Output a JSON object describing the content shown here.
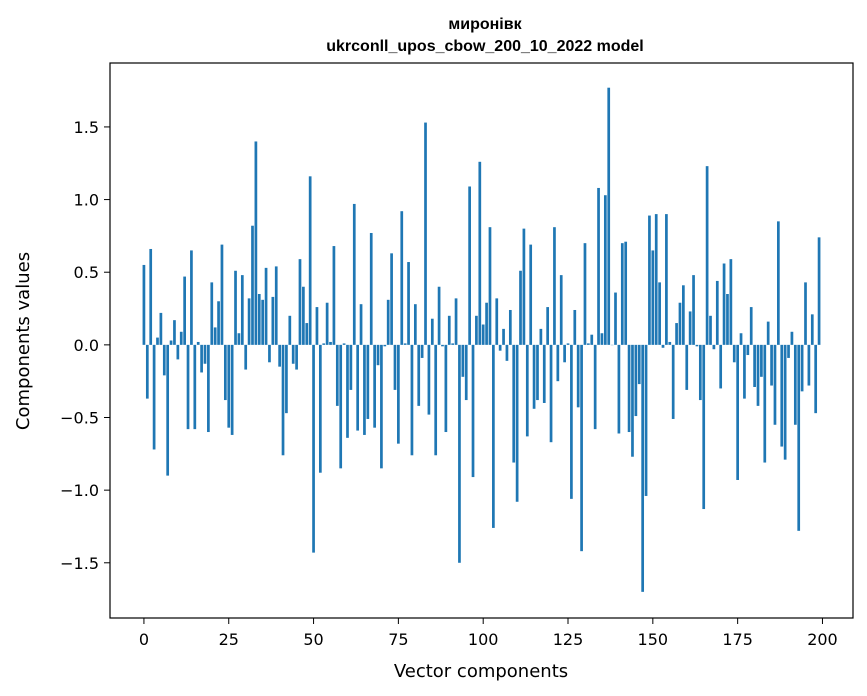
{
  "chart_data": {
    "type": "bar",
    "title_line1": "миронівк",
    "title_line2": "ukrconll_upos_cbow_200_10_2022 model",
    "xlabel": "Vector components",
    "ylabel": "Components values",
    "xlim": [
      -10,
      209
    ],
    "ylim": [
      -1.88,
      1.94
    ],
    "x_ticks": [
      0,
      25,
      50,
      75,
      100,
      125,
      150,
      175,
      200
    ],
    "y_ticks": [
      -1.5,
      -1.0,
      -0.5,
      0.0,
      0.5,
      1.0,
      1.5
    ],
    "y_tick_labels": [
      "−1.5",
      "−1.0",
      "−0.5",
      "0.0",
      "0.5",
      "1.0",
      "1.5"
    ],
    "bar_color": "#1f77b4",
    "x": [
      0,
      1,
      2,
      3,
      4,
      5,
      6,
      7,
      8,
      9,
      10,
      11,
      12,
      13,
      14,
      15,
      16,
      17,
      18,
      19,
      20,
      21,
      22,
      23,
      24,
      25,
      26,
      27,
      28,
      29,
      30,
      31,
      32,
      33,
      34,
      35,
      36,
      37,
      38,
      39,
      40,
      41,
      42,
      43,
      44,
      45,
      46,
      47,
      48,
      49,
      50,
      51,
      52,
      53,
      54,
      55,
      56,
      57,
      58,
      59,
      60,
      61,
      62,
      63,
      64,
      65,
      66,
      67,
      68,
      69,
      70,
      71,
      72,
      73,
      74,
      75,
      76,
      77,
      78,
      79,
      80,
      81,
      82,
      83,
      84,
      85,
      86,
      87,
      88,
      89,
      90,
      91,
      92,
      93,
      94,
      95,
      96,
      97,
      98,
      99,
      100,
      101,
      102,
      103,
      104,
      105,
      106,
      107,
      108,
      109,
      110,
      111,
      112,
      113,
      114,
      115,
      116,
      117,
      118,
      119,
      120,
      121,
      122,
      123,
      124,
      125,
      126,
      127,
      128,
      129,
      130,
      131,
      132,
      133,
      134,
      135,
      136,
      137,
      138,
      139,
      140,
      141,
      142,
      143,
      144,
      145,
      146,
      147,
      148,
      149,
      150,
      151,
      152,
      153,
      154,
      155,
      156,
      157,
      158,
      159,
      160,
      161,
      162,
      163,
      164,
      165,
      166,
      167,
      168,
      169,
      170,
      171,
      172,
      173,
      174,
      175,
      176,
      177,
      178,
      179,
      180,
      181,
      182,
      183,
      184,
      185,
      186,
      187,
      188,
      189,
      190,
      191,
      192,
      193,
      194,
      195,
      196,
      197,
      198,
      199
    ],
    "values": [
      0.55,
      -0.37,
      0.66,
      -0.72,
      0.05,
      0.22,
      -0.21,
      -0.9,
      0.03,
      0.17,
      -0.1,
      0.09,
      0.47,
      -0.58,
      0.65,
      -0.58,
      0.02,
      -0.19,
      -0.13,
      -0.6,
      0.43,
      0.12,
      0.3,
      0.69,
      -0.38,
      -0.57,
      -0.62,
      0.51,
      0.08,
      0.48,
      -0.17,
      0.32,
      0.82,
      1.4,
      0.35,
      0.31,
      0.53,
      -0.12,
      0.33,
      0.54,
      -0.15,
      -0.76,
      -0.47,
      0.2,
      -0.13,
      -0.17,
      0.59,
      0.4,
      0.15,
      1.16,
      -1.43,
      0.26,
      -0.88,
      0.01,
      0.29,
      0.02,
      0.68,
      -0.42,
      -0.85,
      0.01,
      -0.64,
      -0.31,
      0.97,
      -0.59,
      0.28,
      -0.62,
      -0.51,
      0.77,
      -0.57,
      -0.14,
      -0.85,
      -0.01,
      0.31,
      0.63,
      -0.31,
      -0.68,
      0.92,
      0.01,
      0.57,
      -0.76,
      0.28,
      -0.42,
      -0.09,
      1.53,
      -0.48,
      0.18,
      -0.76,
      0.4,
      -0.01,
      -0.6,
      0.2,
      0.01,
      0.32,
      -1.5,
      -0.22,
      -0.38,
      1.09,
      -0.91,
      0.2,
      1.26,
      0.14,
      0.29,
      0.81,
      -1.26,
      0.32,
      -0.04,
      0.11,
      -0.11,
      0.24,
      -0.81,
      -1.08,
      0.51,
      0.8,
      -0.63,
      0.69,
      -0.44,
      -0.38,
      0.11,
      -0.4,
      0.26,
      -0.67,
      0.81,
      -0.25,
      0.48,
      -0.12,
      0.01,
      -1.06,
      0.24,
      -0.43,
      -1.42,
      0.7,
      0.01,
      0.07,
      -0.58,
      1.08,
      0.08,
      1.03,
      1.77,
      0.0,
      0.36,
      -0.61,
      0.7,
      0.71,
      -0.6,
      -0.77,
      -0.49,
      -0.27,
      -1.7,
      -1.04,
      0.89,
      0.65,
      0.9,
      0.43,
      -0.02,
      0.9,
      0.02,
      -0.51,
      0.15,
      0.29,
      0.41,
      -0.31,
      0.23,
      0.48,
      -0.01,
      -0.38,
      -1.13,
      1.23,
      0.2,
      -0.03,
      0.44,
      -0.3,
      0.56,
      0.35,
      0.59,
      -0.12,
      -0.93,
      0.08,
      -0.37,
      -0.07,
      0.26,
      -0.29,
      -0.42,
      -0.22,
      -0.81,
      0.16,
      -0.28,
      -0.55,
      0.85,
      -0.7,
      -0.79,
      -0.09,
      0.09,
      -0.55,
      -1.28,
      -0.32,
      0.43,
      -0.28,
      0.21,
      -0.47,
      0.74
    ]
  }
}
